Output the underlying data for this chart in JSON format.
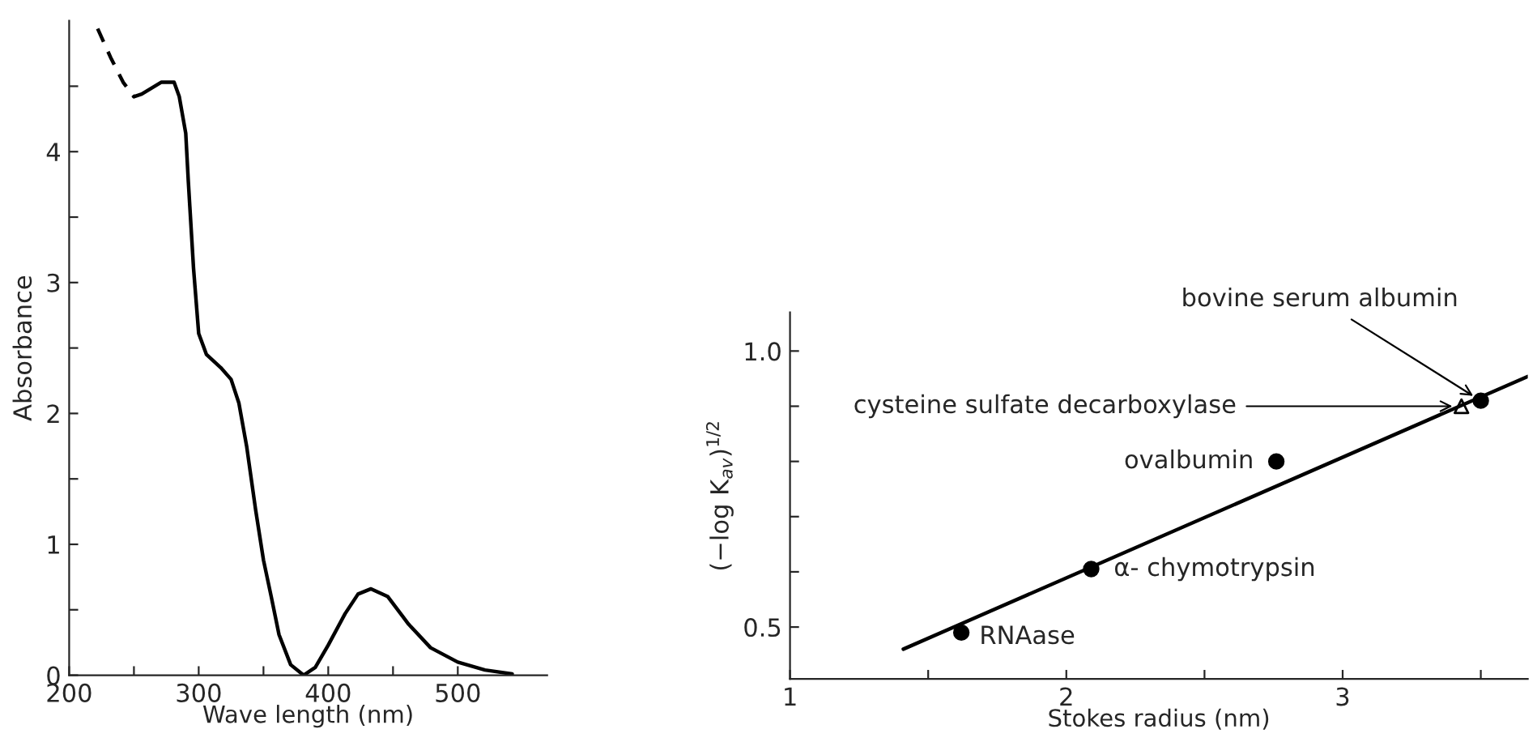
{
  "chart_data": [
    {
      "type": "line",
      "xlabel": "Wave length (nm)",
      "ylabel": "Absorbance",
      "xlim": [
        200,
        569
      ],
      "ylim": [
        0,
        5
      ],
      "xticks": [
        200,
        {
          "value": 250,
          "label": null
        },
        300,
        {
          "value": 350,
          "label": null
        },
        400,
        {
          "value": 450,
          "label": null
        },
        500
      ],
      "yticks": [
        0,
        {
          "value": 0.5,
          "label": null
        },
        1,
        {
          "value": 1.5,
          "label": null
        },
        2,
        {
          "value": 2.5,
          "label": null
        },
        3,
        {
          "value": 3.5,
          "label": null
        },
        4,
        {
          "value": 4.5,
          "label": null
        }
      ],
      "grid": false,
      "legend": false,
      "series": [
        {
          "color": "#000000",
          "line_style": "dashed",
          "x": [
            222,
            232,
            241.7,
            250
          ],
          "values": [
            4.94,
            4.72,
            4.53,
            4.42
          ]
        },
        {
          "color": "#000000",
          "line_style": "solid",
          "x": [
            250,
            256,
            271,
            281,
            285,
            290,
            292,
            296,
            300,
            306,
            317,
            325,
            331,
            337,
            344,
            350,
            356,
            362,
            371,
            381,
            390,
            400,
            413,
            423,
            433,
            446,
            462,
            479,
            500,
            521,
            542
          ],
          "values": [
            4.42,
            4.44,
            4.53,
            4.53,
            4.42,
            4.14,
            3.77,
            3.11,
            2.61,
            2.45,
            2.35,
            2.26,
            2.08,
            1.75,
            1.26,
            0.88,
            0.6,
            0.31,
            0.08,
            0,
            0.06,
            0.23,
            0.47,
            0.62,
            0.66,
            0.6,
            0.39,
            0.21,
            0.1,
            0.04,
            0.01
          ]
        }
      ]
    },
    {
      "type": "scatter",
      "xlabel": "Stokes radius (nm)",
      "ylabel": "(−log K$_{av}$)$^{1/2}$",
      "xlim": [
        1,
        3.67
      ],
      "ylim": [
        0.406,
        1.07
      ],
      "xticks": [
        1,
        {
          "value": 1.5,
          "label": null
        },
        2,
        {
          "value": 2.5,
          "label": null
        },
        3,
        {
          "value": 3.5,
          "label": null
        }
      ],
      "yticks": [
        {
          "value": 0.5,
          "label": "0.5"
        },
        {
          "value": 0.6,
          "label": null
        },
        {
          "value": 0.7,
          "label": null
        },
        {
          "value": 0.8,
          "label": null
        },
        {
          "value": 0.9,
          "label": null
        },
        {
          "value": 1.0,
          "label": "1.0"
        }
      ],
      "grid": false,
      "legend": false,
      "series": [
        {
          "type": "scatter",
          "marker": "circle",
          "color": "#000000",
          "x": [
            1.62,
            2.09,
            2.76,
            3.5
          ],
          "values": [
            0.49,
            0.605,
            0.8,
            0.91
          ]
        },
        {
          "type": "scatter",
          "marker": "triangle",
          "color": "#000000",
          "x": [
            3.43
          ],
          "values": [
            0.9
          ]
        },
        {
          "type": "line",
          "marker": "none",
          "color": "#000000",
          "x": [
            1.41,
            3.67
          ],
          "values": [
            0.46,
            0.954
          ]
        }
      ],
      "annotations": [
        {
          "text": "RNAase",
          "x": 1.62,
          "y": 0.49
        },
        {
          "text": "α- chymotrypsin",
          "x": 2.09,
          "y": 0.605
        },
        {
          "text": "ovalbumin",
          "x": 2.76,
          "y": 0.8
        },
        {
          "text": "cysteine sulfate decarboxylase",
          "x": 3.43,
          "y": 0.9
        },
        {
          "text": "bovine serum albumin",
          "x": 3.5,
          "y": 0.91
        }
      ]
    }
  ]
}
